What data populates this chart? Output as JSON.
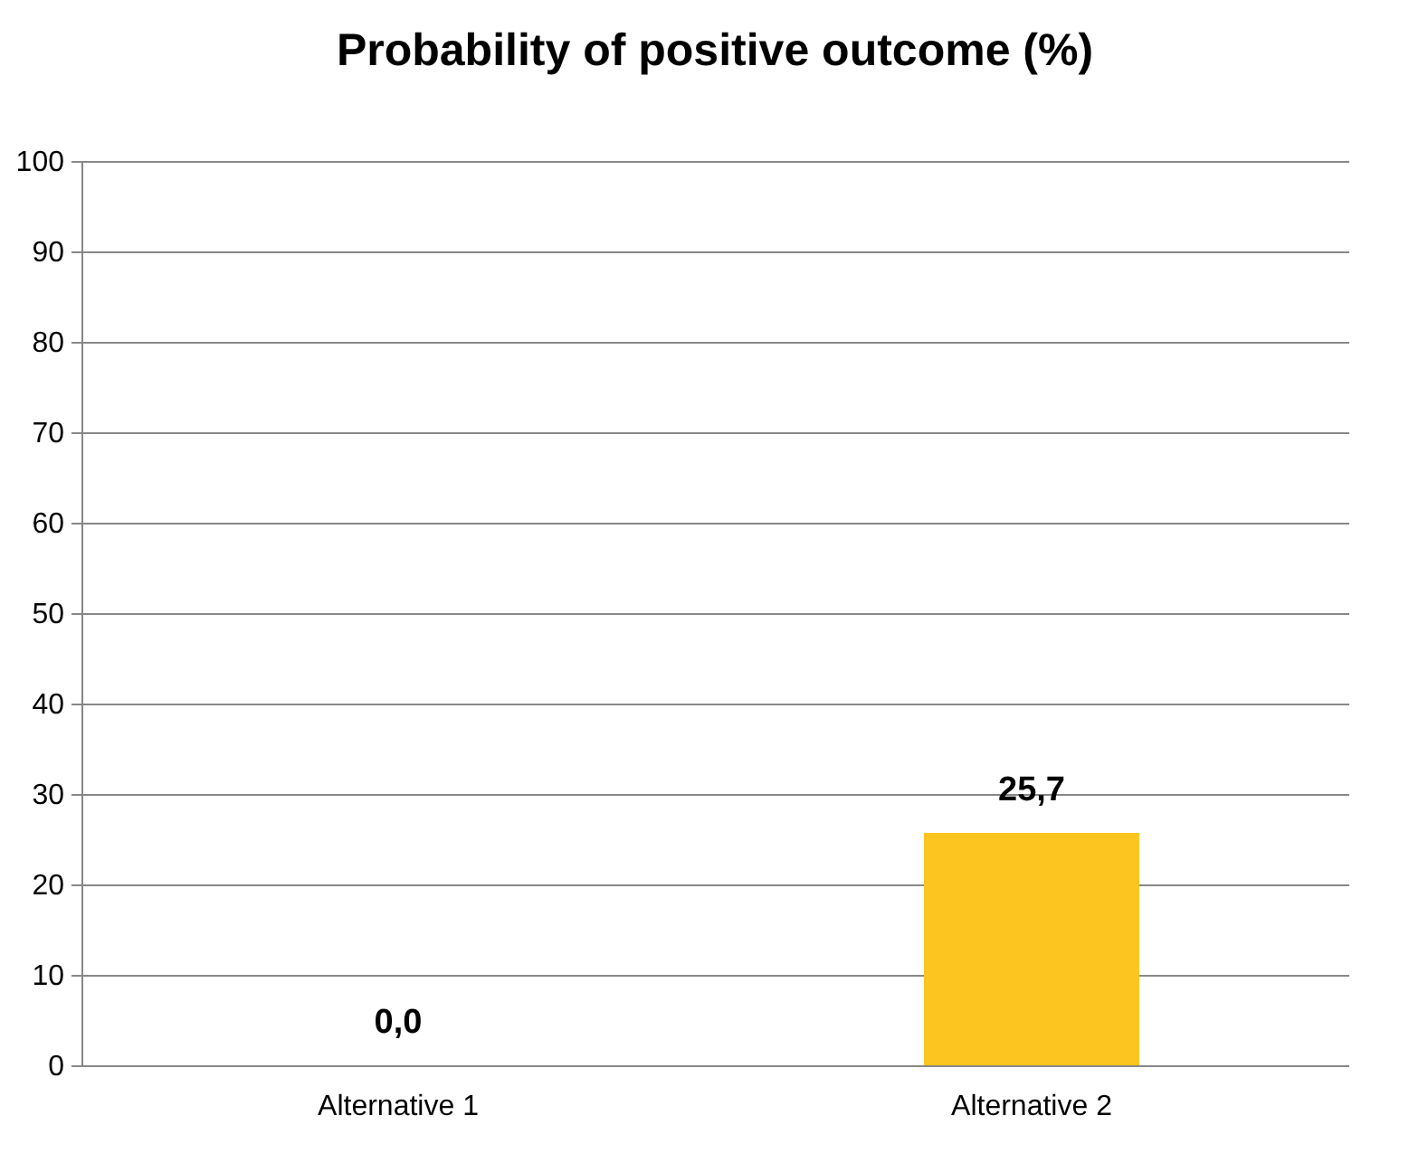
{
  "chart_data": {
    "type": "bar",
    "title": "Probability of positive outcome (%)",
    "categories": [
      "Alternative 1",
      "Alternative 2"
    ],
    "values": [
      0,
      25.7
    ],
    "color": "#fdc51f",
    "value_labels": [
      "0,0",
      "25,7"
    ],
    "ylim": [
      0,
      100
    ],
    "yticks": [
      0,
      10,
      20,
      30,
      40,
      50,
      60,
      70,
      80,
      90,
      100
    ],
    "grid": "y"
  }
}
